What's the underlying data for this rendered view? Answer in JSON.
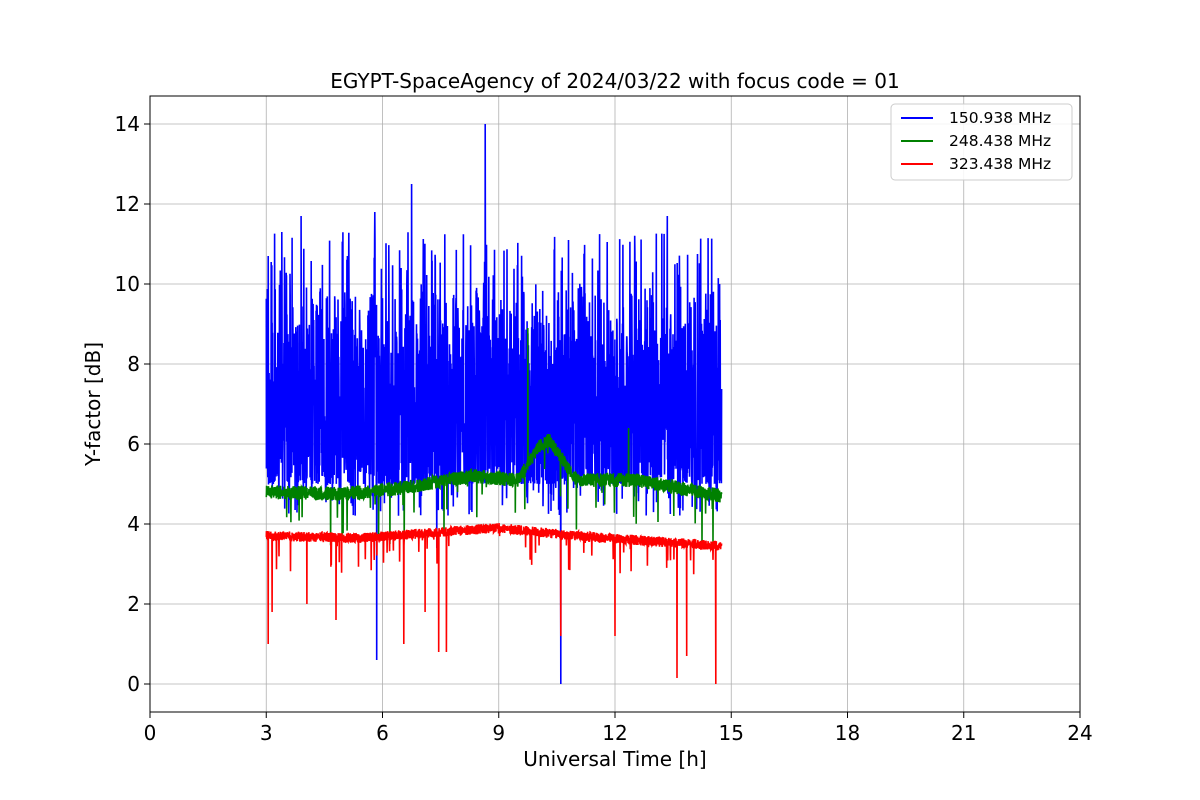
{
  "chart_data": {
    "type": "line",
    "title": "EGYPT-SpaceAgency of 2024/03/22 with focus code = 01",
    "xlabel": "Universal Time [h]",
    "ylabel": "Y-factor [dB]",
    "xlim": [
      0,
      24
    ],
    "ylim": [
      -0.7,
      14.7
    ],
    "xticks": [
      0,
      3,
      6,
      9,
      12,
      15,
      18,
      21,
      24
    ],
    "yticks": [
      0,
      2,
      4,
      6,
      8,
      10,
      12,
      14
    ],
    "grid": true,
    "legend_position": "top-right",
    "series": [
      {
        "name": "150.938 MHz",
        "color": "#0000ff",
        "x_range": [
          3.0,
          14.75
        ],
        "baseline": 7.0,
        "typical_range": [
          5.0,
          9.5
        ],
        "peaks": [
          {
            "x": 3.05,
            "y": 10.7
          },
          {
            "x": 3.4,
            "y": 11.3
          },
          {
            "x": 3.9,
            "y": 11.7
          },
          {
            "x": 5.8,
            "y": 11.8
          },
          {
            "x": 6.75,
            "y": 12.5
          },
          {
            "x": 8.65,
            "y": 14.0
          },
          {
            "x": 10.8,
            "y": 11.1
          },
          {
            "x": 13.35,
            "y": 11.7
          },
          {
            "x": 14.7,
            "y": 10.0
          }
        ],
        "dips": [
          {
            "x": 5.85,
            "y": 0.6
          },
          {
            "x": 10.6,
            "y": 0.0
          },
          {
            "x": 7.4,
            "y": 3.4
          }
        ]
      },
      {
        "name": "248.438 MHz",
        "color": "#008000",
        "x_range": [
          3.0,
          14.75
        ],
        "trend": [
          {
            "x": 3.0,
            "y": 4.8
          },
          {
            "x": 5.0,
            "y": 4.75
          },
          {
            "x": 6.5,
            "y": 4.9
          },
          {
            "x": 8.3,
            "y": 5.2
          },
          {
            "x": 9.5,
            "y": 5.1
          },
          {
            "x": 10.0,
            "y": 5.9
          },
          {
            "x": 10.3,
            "y": 6.1
          },
          {
            "x": 11.0,
            "y": 5.1
          },
          {
            "x": 12.5,
            "y": 5.1
          },
          {
            "x": 14.75,
            "y": 4.7
          }
        ],
        "peaks": [
          {
            "x": 9.75,
            "y": 8.9
          },
          {
            "x": 12.35,
            "y": 6.4
          }
        ]
      },
      {
        "name": "323.438 MHz",
        "color": "#ff0000",
        "x_range": [
          3.0,
          14.75
        ],
        "trend": [
          {
            "x": 3.0,
            "y": 3.7
          },
          {
            "x": 5.5,
            "y": 3.65
          },
          {
            "x": 7.5,
            "y": 3.8
          },
          {
            "x": 9.0,
            "y": 3.9
          },
          {
            "x": 11.0,
            "y": 3.7
          },
          {
            "x": 14.75,
            "y": 3.45
          }
        ],
        "dips": [
          {
            "x": 3.05,
            "y": 1.0
          },
          {
            "x": 3.15,
            "y": 1.8
          },
          {
            "x": 4.05,
            "y": 2.0
          },
          {
            "x": 4.8,
            "y": 1.6
          },
          {
            "x": 6.55,
            "y": 1.0
          },
          {
            "x": 7.1,
            "y": 1.8
          },
          {
            "x": 7.45,
            "y": 0.8
          },
          {
            "x": 7.65,
            "y": 0.8
          },
          {
            "x": 10.6,
            "y": 1.2
          },
          {
            "x": 12.0,
            "y": 1.2
          },
          {
            "x": 13.6,
            "y": 0.15
          },
          {
            "x": 13.85,
            "y": 0.7
          },
          {
            "x": 14.6,
            "y": 0.0
          }
        ]
      }
    ]
  }
}
